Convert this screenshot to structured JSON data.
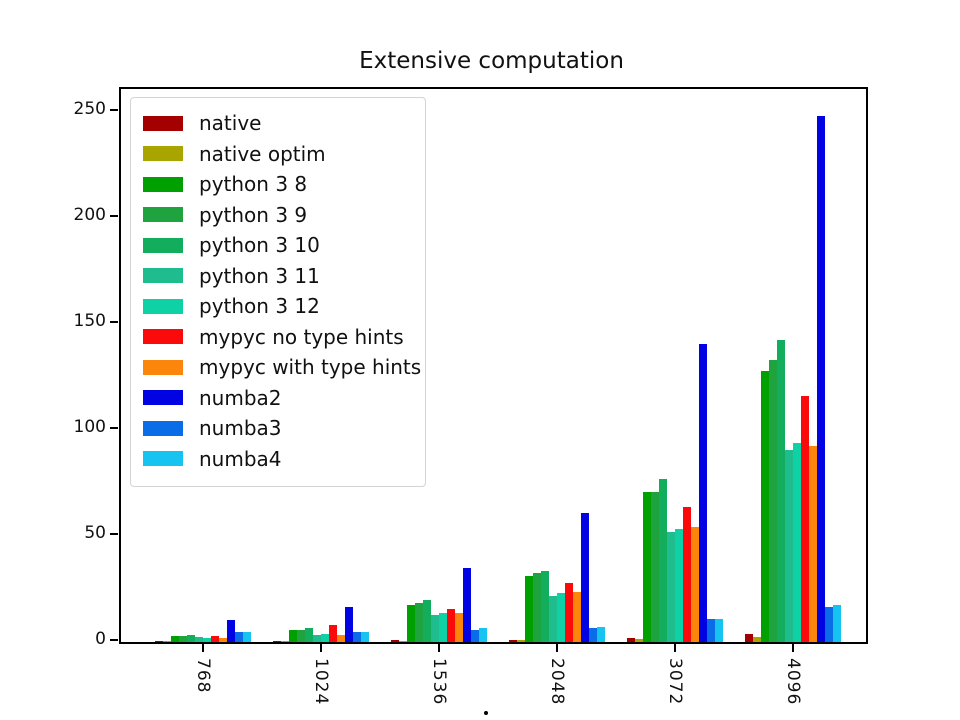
{
  "figure": {
    "title": "Extensive computation",
    "xlabel_partial": "."
  },
  "chart_data": {
    "type": "bar",
    "title": "Extensive computation",
    "categories": [
      "768",
      "1024",
      "1536",
      "2048",
      "3072",
      "4096"
    ],
    "series": [
      {
        "name": "native",
        "color": "#a40000",
        "values": [
          0.4,
          0.5,
          0.8,
          0.9,
          2.0,
          3.9
        ]
      },
      {
        "name": "native optim",
        "color": "#a8a400",
        "values": [
          0.3,
          0.4,
          0.6,
          0.8,
          1.2,
          2.4
        ]
      },
      {
        "name": "python 3 8",
        "color": "#00a000",
        "values": [
          3.0,
          5.8,
          17.6,
          31.0,
          71.0,
          128.0
        ]
      },
      {
        "name": "python 3 9",
        "color": "#1ea33e",
        "values": [
          3.0,
          5.8,
          18.4,
          32.5,
          71.0,
          133.0
        ]
      },
      {
        "name": "python 3 10",
        "color": "#13ad5e",
        "values": [
          3.3,
          6.6,
          19.7,
          33.3,
          77.0,
          142.5
        ]
      },
      {
        "name": "python 3 11",
        "color": "#1fbd8d",
        "values": [
          2.2,
          3.5,
          12.9,
          21.5,
          52.0,
          90.5
        ]
      },
      {
        "name": "python 3 12",
        "color": "#0ed2a5",
        "values": [
          2.0,
          3.8,
          13.7,
          23.3,
          53.5,
          94.0
        ]
      },
      {
        "name": "mypyc no type hints",
        "color": "#fa0a0a",
        "values": [
          2.8,
          7.9,
          15.5,
          27.7,
          63.5,
          116.0
        ]
      },
      {
        "name": "mypyc with type hints",
        "color": "#fc860c",
        "values": [
          1.9,
          3.2,
          13.5,
          23.5,
          54.5,
          92.5
        ]
      },
      {
        "name": "numba2",
        "color": "#0203e3",
        "values": [
          10.2,
          16.5,
          35.0,
          61.0,
          140.5,
          248.5
        ]
      },
      {
        "name": "numba3",
        "color": "#0b6ce8",
        "values": [
          4.9,
          4.7,
          5.5,
          6.8,
          11.0,
          16.5
        ]
      },
      {
        "name": "numba4",
        "color": "#17c3f0",
        "values": [
          4.6,
          4.7,
          6.5,
          7.2,
          10.7,
          17.5
        ]
      }
    ],
    "xlabel": "",
    "ylabel": "",
    "ylim": [
      0,
      261
    ],
    "yticks": [
      0,
      50,
      100,
      150,
      200,
      250
    ],
    "grid": false,
    "legend_position": "upper left",
    "x_tick_rotation": 90
  }
}
